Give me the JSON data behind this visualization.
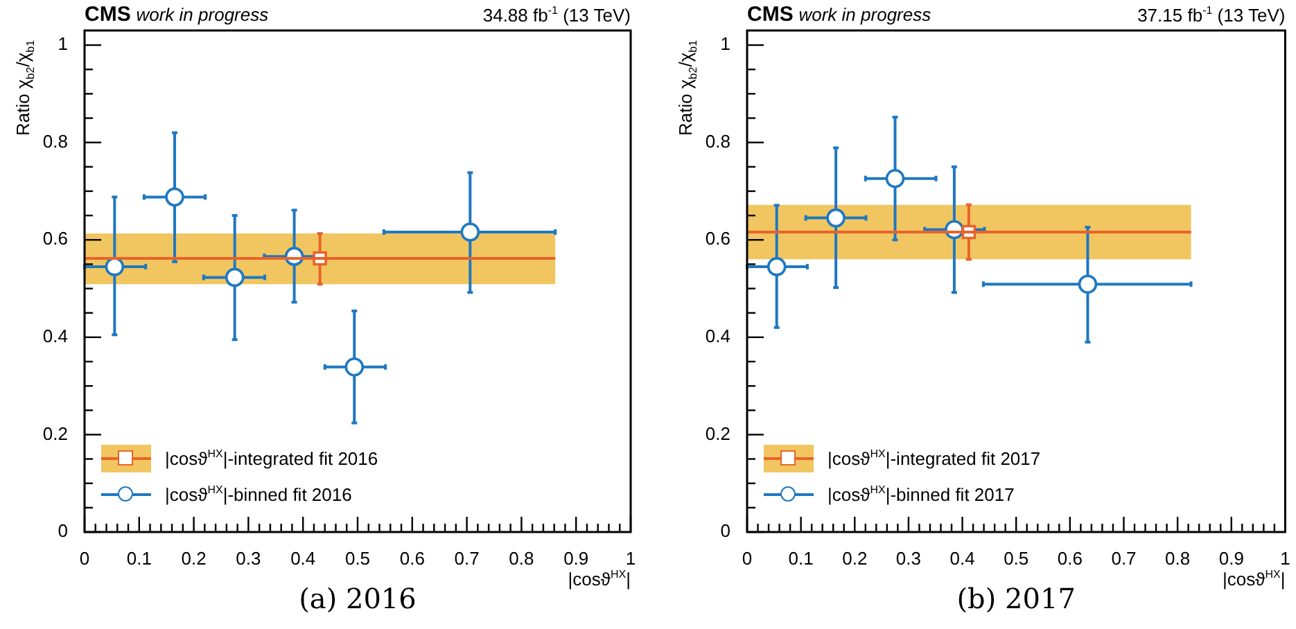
{
  "chart_data": [
    {
      "type": "scatter",
      "title": "CMS",
      "subtitle": "work in progress",
      "xlabel": "|cosϑ$^{HX}$|",
      "ylabel": "Ratio χ$_{b2}$/χ$_{b1}$",
      "annotations": [
        "34.88 fb$^{-1}$ (13 TeV)",
        "(a) 2016"
      ],
      "xlim": [
        0,
        1
      ],
      "ylim": [
        0,
        1.03
      ],
      "grid": false,
      "legend": "bottom left",
      "xticks": [
        0,
        {
          "value": 0.02,
          "label": null
        },
        {
          "value": 0.04,
          "label": null
        },
        {
          "value": 0.06,
          "label": null
        },
        {
          "value": 0.08,
          "label": null
        },
        0.1,
        {
          "value": 0.12,
          "label": null
        },
        {
          "value": 0.14,
          "label": null
        },
        {
          "value": 0.16,
          "label": null
        },
        {
          "value": 0.18,
          "label": null
        },
        0.2,
        {
          "value": 0.22,
          "label": null
        },
        {
          "value": 0.24,
          "label": null
        },
        {
          "value": 0.26,
          "label": null
        },
        {
          "value": 0.28,
          "label": null
        },
        0.3,
        {
          "value": 0.32,
          "label": null
        },
        {
          "value": 0.34,
          "label": null
        },
        {
          "value": 0.36,
          "label": null
        },
        {
          "value": 0.38,
          "label": null
        },
        0.4,
        {
          "value": 0.42,
          "label": null
        },
        {
          "value": 0.44,
          "label": null
        },
        {
          "value": 0.46,
          "label": null
        },
        {
          "value": 0.48,
          "label": null
        },
        0.5,
        {
          "value": 0.52,
          "label": null
        },
        {
          "value": 0.54,
          "label": null
        },
        {
          "value": 0.56,
          "label": null
        },
        {
          "value": 0.58,
          "label": null
        },
        0.6,
        {
          "value": 0.62,
          "label": null
        },
        {
          "value": 0.64,
          "label": null
        },
        {
          "value": 0.66,
          "label": null
        },
        {
          "value": 0.68,
          "label": null
        },
        0.7,
        {
          "value": 0.72,
          "label": null
        },
        {
          "value": 0.74,
          "label": null
        },
        {
          "value": 0.76,
          "label": null
        },
        {
          "value": 0.78,
          "label": null
        },
        0.8,
        {
          "value": 0.82,
          "label": null
        },
        {
          "value": 0.84,
          "label": null
        },
        {
          "value": 0.86,
          "label": null
        },
        {
          "value": 0.88,
          "label": null
        },
        0.9,
        {
          "value": 0.92,
          "label": null
        },
        {
          "value": 0.94,
          "label": null
        },
        {
          "value": 0.96,
          "label": null
        },
        {
          "value": 0.98,
          "label": null
        },
        1
      ],
      "yticks": [
        0,
        {
          "value": 0.05,
          "label": null
        },
        {
          "value": 0.1,
          "label": null
        },
        {
          "value": 0.15,
          "label": null
        },
        0.2,
        {
          "value": 0.25,
          "label": null
        },
        {
          "value": 0.3,
          "label": null
        },
        {
          "value": 0.35,
          "label": null
        },
        0.4,
        {
          "value": 0.45,
          "label": null
        },
        {
          "value": 0.5,
          "label": null
        },
        {
          "value": 0.55,
          "label": null
        },
        0.6,
        {
          "value": 0.65,
          "label": null
        },
        {
          "value": 0.7,
          "label": null
        },
        {
          "value": 0.75,
          "label": null
        },
        0.8,
        {
          "value": 0.85,
          "label": null
        },
        {
          "value": 0.9,
          "label": null
        },
        {
          "value": 0.95,
          "label": null
        },
        1
      ],
      "series": [
        {
          "type": "line",
          "color": "#e8632a",
          "x": [
            0,
            0.862
          ],
          "values": [
            0.562,
            0.562
          ],
          "lower": [
            0.509,
            0.509
          ],
          "upper": [
            0.613,
            0.613
          ],
          "marker": "none"
        },
        {
          "type": "scatter",
          "name": "|cosϑ$^{HX}$|-integrated fit 2016",
          "color": "#e8632a",
          "marker": "square",
          "x": [
            0.431
          ],
          "values": [
            0.562
          ],
          "errors": [
            [
              0.509,
              0.613
            ]
          ]
        },
        {
          "type": "scatter",
          "name": "|cosϑ$^{HX}$|-binned fit 2016",
          "color": "#1f78c1",
          "marker": "circle",
          "x": [
            0.055,
            0.165,
            0.275,
            0.384,
            0.494,
            0.706
          ],
          "values": [
            0.545,
            0.688,
            0.523,
            0.566,
            0.339,
            0.616
          ],
          "errors": [
            [
              0.405,
              0.688
            ],
            [
              0.555,
              0.82
            ],
            [
              0.395,
              0.65
            ],
            [
              0.472,
              0.661
            ],
            [
              0.224,
              0.454
            ],
            [
              0.492,
              0.738
            ]
          ],
          "xerrors": [
            [
              0,
              0.112
            ],
            [
              0.109,
              0.221
            ],
            [
              0.218,
              0.33
            ],
            [
              0.329,
              0.441
            ],
            [
              0.44,
              0.551
            ],
            [
              0.548,
              0.862
            ]
          ]
        }
      ]
    },
    {
      "type": "scatter",
      "title": "CMS",
      "subtitle": "work in progress",
      "xlabel": "|cosϑ$^{HX}$|",
      "ylabel": "Ratio χ$_{b2}$/χ$_{b1}$",
      "annotations": [
        "37.15 fb$^{-1}$ (13 TeV)",
        "(b) 2017"
      ],
      "xlim": [
        0,
        1
      ],
      "ylim": [
        0,
        1.03
      ],
      "grid": false,
      "legend": "bottom left",
      "xticks": [
        0,
        {
          "value": 0.02,
          "label": null
        },
        {
          "value": 0.04,
          "label": null
        },
        {
          "value": 0.06,
          "label": null
        },
        {
          "value": 0.08,
          "label": null
        },
        0.1,
        {
          "value": 0.12,
          "label": null
        },
        {
          "value": 0.14,
          "label": null
        },
        {
          "value": 0.16,
          "label": null
        },
        {
          "value": 0.18,
          "label": null
        },
        0.2,
        {
          "value": 0.22,
          "label": null
        },
        {
          "value": 0.24,
          "label": null
        },
        {
          "value": 0.26,
          "label": null
        },
        {
          "value": 0.28,
          "label": null
        },
        0.3,
        {
          "value": 0.32,
          "label": null
        },
        {
          "value": 0.34,
          "label": null
        },
        {
          "value": 0.36,
          "label": null
        },
        {
          "value": 0.38,
          "label": null
        },
        0.4,
        {
          "value": 0.42,
          "label": null
        },
        {
          "value": 0.44,
          "label": null
        },
        {
          "value": 0.46,
          "label": null
        },
        {
          "value": 0.48,
          "label": null
        },
        0.5,
        {
          "value": 0.52,
          "label": null
        },
        {
          "value": 0.54,
          "label": null
        },
        {
          "value": 0.56,
          "label": null
        },
        {
          "value": 0.58,
          "label": null
        },
        0.6,
        {
          "value": 0.62,
          "label": null
        },
        {
          "value": 0.64,
          "label": null
        },
        {
          "value": 0.66,
          "label": null
        },
        {
          "value": 0.68,
          "label": null
        },
        0.7,
        {
          "value": 0.72,
          "label": null
        },
        {
          "value": 0.74,
          "label": null
        },
        {
          "value": 0.76,
          "label": null
        },
        {
          "value": 0.78,
          "label": null
        },
        0.8,
        {
          "value": 0.82,
          "label": null
        },
        {
          "value": 0.84,
          "label": null
        },
        {
          "value": 0.86,
          "label": null
        },
        {
          "value": 0.88,
          "label": null
        },
        0.9,
        {
          "value": 0.92,
          "label": null
        },
        {
          "value": 0.94,
          "label": null
        },
        {
          "value": 0.96,
          "label": null
        },
        {
          "value": 0.98,
          "label": null
        },
        1
      ],
      "yticks": [
        0,
        {
          "value": 0.05,
          "label": null
        },
        {
          "value": 0.1,
          "label": null
        },
        {
          "value": 0.15,
          "label": null
        },
        0.2,
        {
          "value": 0.25,
          "label": null
        },
        {
          "value": 0.3,
          "label": null
        },
        {
          "value": 0.35,
          "label": null
        },
        0.4,
        {
          "value": 0.45,
          "label": null
        },
        {
          "value": 0.5,
          "label": null
        },
        {
          "value": 0.55,
          "label": null
        },
        0.6,
        {
          "value": 0.65,
          "label": null
        },
        {
          "value": 0.7,
          "label": null
        },
        {
          "value": 0.75,
          "label": null
        },
        0.8,
        {
          "value": 0.85,
          "label": null
        },
        {
          "value": 0.9,
          "label": null
        },
        {
          "value": 0.95,
          "label": null
        },
        1
      ],
      "series": [
        {
          "type": "line",
          "color": "#e8632a",
          "x": [
            0,
            0.825
          ],
          "values": [
            0.616,
            0.616
          ],
          "lower": [
            0.56,
            0.56
          ],
          "upper": [
            0.672,
            0.672
          ],
          "marker": "none"
        },
        {
          "type": "scatter",
          "name": "|cosϑ$^{HX}$|-integrated fit 2017",
          "color": "#e8632a",
          "marker": "square",
          "x": [
            0.412
          ],
          "values": [
            0.616
          ],
          "errors": [
            [
              0.56,
              0.672
            ]
          ]
        },
        {
          "type": "scatter",
          "name": "|cosϑ$^{HX}$|-binned fit 2017",
          "color": "#1f78c1",
          "marker": "circle",
          "x": [
            0.055,
            0.165,
            0.275,
            0.385,
            0.633
          ],
          "values": [
            0.545,
            0.645,
            0.726,
            0.621,
            0.509
          ],
          "errors": [
            [
              0.42,
              0.671
            ],
            [
              0.502,
              0.789
            ],
            [
              0.6,
              0.852
            ],
            [
              0.492,
              0.75
            ],
            [
              0.39,
              0.626
            ]
          ],
          "xerrors": [
            [
              0,
              0.112
            ],
            [
              0.109,
              0.221
            ],
            [
              0.22,
              0.351
            ],
            [
              0.33,
              0.441
            ],
            [
              0.439,
              0.825
            ]
          ]
        }
      ]
    }
  ]
}
